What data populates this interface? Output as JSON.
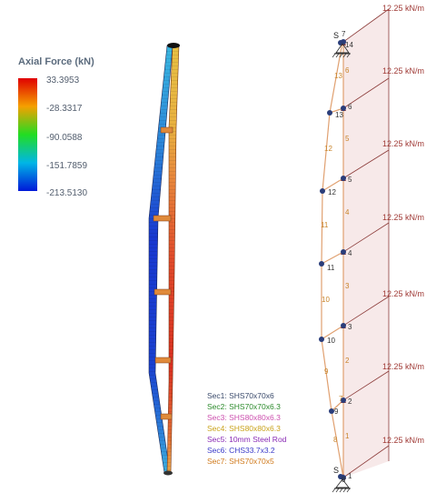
{
  "legend": {
    "title": "Axial Force (kN)",
    "values": [
      "33.3953",
      "-28.3317",
      "-90.0588",
      "-151.7859",
      "-213.5130"
    ],
    "colors": [
      "#e00000",
      "#f5a000",
      "#22dd22",
      "#00b6e6",
      "#0018d8"
    ]
  },
  "loads": {
    "label": "12.25 kN/m",
    "count": 7
  },
  "supports": {
    "top_label": "S",
    "bottom_label": "S"
  },
  "nodes": [
    "1",
    "2",
    "3",
    "4",
    "5",
    "6",
    "7",
    "8",
    "9",
    "10",
    "11",
    "12",
    "13",
    "14"
  ],
  "members": [
    "1",
    "2",
    "3",
    "4",
    "5",
    "6",
    "7",
    "8",
    "9",
    "10",
    "11",
    "12",
    "13"
  ],
  "sections": [
    {
      "label": "Sec1: SHS70x70x6",
      "color": "#3a4a6b"
    },
    {
      "label": "Sec2: SHS70x70x6.3",
      "color": "#2b8a2b"
    },
    {
      "label": "Sec3: SHS80x80x6.3",
      "color": "#cc4fae"
    },
    {
      "label": "Sec4: SHS80x80x6.3",
      "color": "#c9a21a"
    },
    {
      "label": "Sec5: 10mm Steel Rod",
      "color": "#8a2bb5"
    },
    {
      "label": "Sec6: CHS33.7x3.2",
      "color": "#3b3bc9"
    },
    {
      "label": "Sec7: SHS70x70x5",
      "color": "#d07a1c"
    }
  ],
  "colors": {
    "load_line": "#8b3a38",
    "load_fill": "#f7e9e9",
    "chord": "#e0a070",
    "node": "#2a3d7a"
  }
}
